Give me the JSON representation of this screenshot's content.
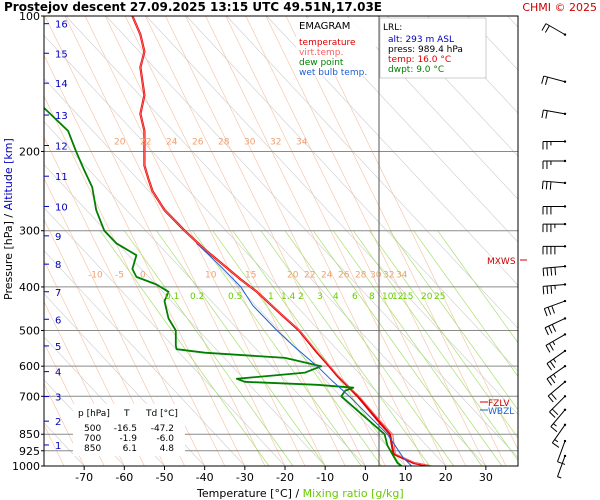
{
  "header": {
    "title": "Prostejov   descent   27.09.2025 13:15 UTC  49.51N,17.03E",
    "copyright": "CHMI © 2025"
  },
  "colors": {
    "temperature": "#e00000",
    "virt_temp": "#ff6060",
    "dew_point": "#008000",
    "wet_bulb": "#1f5fd0",
    "altitude": "#0000c0",
    "mixing_ratio": "#66cc00",
    "isotherm_label": "#f0a070",
    "grid": "#999999"
  },
  "legend": {
    "title": "EMAGRAM",
    "items": [
      {
        "label": "temperature",
        "color": "#e00000"
      },
      {
        "label": "virt.temp.",
        "color": "#ff6060"
      },
      {
        "label": "dew point",
        "color": "#008000"
      },
      {
        "label": "wet bulb temp.",
        "color": "#1f5fd0"
      }
    ]
  },
  "lrl": {
    "title": "LRL:",
    "alt": "alt: 293 m ASL",
    "press": "press: 989.4 hPa",
    "temp": "temp: 16.0 °C",
    "dwpt": "dwpt: 9.0 °C"
  },
  "table": {
    "headers": [
      "p [hPa]",
      "T",
      "Td [°C]"
    ],
    "rows": [
      [
        "500",
        "-16.5",
        "-47.2"
      ],
      [
        "700",
        "-1.9",
        "-6.0"
      ],
      [
        "850",
        "6.1",
        "4.8"
      ]
    ]
  },
  "levels": {
    "mxws": "MXWS",
    "fzlv": "FZLV",
    "wbzl": "WBZL"
  },
  "chart_data": {
    "type": "line",
    "xlabel": "Temperature [°C]",
    "xlabel2": "Mixing ratio [g/kg]",
    "ylabel": "Pressure [hPa]",
    "ylabel2": "Altitude [km]",
    "xlim": [
      -80,
      38
    ],
    "ylim": [
      1000,
      100
    ],
    "yscale": "log",
    "x_ticks": [
      -70,
      -60,
      -50,
      -40,
      -30,
      -20,
      -10,
      0,
      10,
      20,
      30
    ],
    "p_ticks": [
      100,
      200,
      300,
      400,
      500,
      600,
      700,
      850,
      925,
      1000
    ],
    "alt_ticks": [
      {
        "km": "1",
        "p": 898
      },
      {
        "km": "2",
        "p": 795
      },
      {
        "km": "3",
        "p": 701
      },
      {
        "km": "4",
        "p": 617
      },
      {
        "km": "5",
        "p": 541
      },
      {
        "km": "6",
        "p": 472
      },
      {
        "km": "7",
        "p": 410
      },
      {
        "km": "8",
        "p": 356
      },
      {
        "km": "9",
        "p": 308
      },
      {
        "km": "10",
        "p": 265
      },
      {
        "km": "11",
        "p": 227
      },
      {
        "km": "12",
        "p": 194
      },
      {
        "km": "13",
        "p": 166
      },
      {
        "km": "14",
        "p": 141
      },
      {
        "km": "15",
        "p": 121
      },
      {
        "km": "16",
        "p": 104
      }
    ],
    "isotherm_labels_upper": {
      "p": 195,
      "values": [
        "20",
        "22",
        "24",
        "26",
        "28",
        "30",
        "32",
        "34"
      ]
    },
    "isotherm_labels_lower": {
      "p": 385,
      "values": [
        "-10",
        "-5",
        "0",
        "10",
        "15",
        "20",
        "22",
        "24",
        "26",
        "28",
        "30",
        "32",
        "34"
      ]
    },
    "mixing_ratio_labels": {
      "p": 415,
      "values": [
        "0.1",
        "0.2",
        "0.5",
        "1",
        "1.4",
        "2",
        "3",
        "4",
        "6",
        "8",
        "10",
        "12",
        "15",
        "20",
        "25"
      ]
    },
    "series": [
      {
        "name": "temperature",
        "points": [
          [
            15.8,
            1000
          ],
          [
            12,
            985
          ],
          [
            7,
            940
          ],
          [
            6.1,
            850
          ],
          [
            3,
            790
          ],
          [
            -1.9,
            700
          ],
          [
            -4,
            670
          ],
          [
            -7,
            630
          ],
          [
            -9,
            600
          ],
          [
            -12,
            560
          ],
          [
            -16.5,
            500
          ],
          [
            -21,
            460
          ],
          [
            -27,
            410
          ],
          [
            -31,
            385
          ],
          [
            -40,
            330
          ],
          [
            -45,
            300
          ],
          [
            -50,
            270
          ],
          [
            -53,
            245
          ],
          [
            -54,
            230
          ],
          [
            -55,
            215
          ],
          [
            -55,
            200
          ],
          [
            -55,
            180
          ],
          [
            -56,
            165
          ],
          [
            -55,
            150
          ],
          [
            -56,
            130
          ],
          [
            -55,
            120
          ],
          [
            -56,
            110
          ],
          [
            -58,
            100
          ]
        ]
      },
      {
        "name": "virt.temp.",
        "points": [
          [
            16.5,
            1000
          ],
          [
            12.5,
            985
          ],
          [
            7.5,
            940
          ],
          [
            6.8,
            850
          ],
          [
            3.5,
            790
          ],
          [
            -1.5,
            700
          ],
          [
            -3.8,
            670
          ],
          [
            -6.8,
            630
          ],
          [
            -8.8,
            600
          ],
          [
            -11.8,
            560
          ],
          [
            -16.4,
            500
          ],
          [
            -20.9,
            460
          ],
          [
            -27,
            410
          ],
          [
            -31,
            385
          ],
          [
            -40,
            330
          ],
          [
            -45,
            300
          ],
          [
            -50,
            270
          ],
          [
            -53,
            245
          ],
          [
            -54,
            230
          ],
          [
            -55,
            215
          ],
          [
            -55,
            200
          ],
          [
            -55,
            180
          ],
          [
            -56,
            165
          ],
          [
            -55,
            150
          ],
          [
            -56,
            130
          ],
          [
            -55,
            120
          ],
          [
            -56,
            110
          ],
          [
            -58,
            100
          ]
        ]
      },
      {
        "name": "dew point",
        "points": [
          [
            9,
            1000
          ],
          [
            8,
            985
          ],
          [
            5.5,
            900
          ],
          [
            4.8,
            850
          ],
          [
            0,
            780
          ],
          [
            -6,
            700
          ],
          [
            -5,
            680
          ],
          [
            -3,
            670
          ],
          [
            -12,
            660
          ],
          [
            -30,
            650
          ],
          [
            -32,
            640
          ],
          [
            -15,
            620
          ],
          [
            -11,
            600
          ],
          [
            -20,
            575
          ],
          [
            -40,
            560
          ],
          [
            -47,
            550
          ],
          [
            -47.2,
            540
          ],
          [
            -47.2,
            500
          ],
          [
            -49,
            470
          ],
          [
            -50,
            430
          ],
          [
            -49,
            410
          ],
          [
            -52,
            395
          ],
          [
            -57,
            380
          ],
          [
            -58,
            365
          ],
          [
            -57,
            340
          ],
          [
            -62,
            320
          ],
          [
            -65,
            300
          ],
          [
            -67,
            270
          ],
          [
            -68,
            240
          ],
          [
            -70,
            220
          ],
          [
            -72,
            200
          ],
          [
            -74,
            180
          ],
          [
            -80,
            160
          ]
        ]
      },
      {
        "name": "wet bulb temp.",
        "points": [
          [
            11.5,
            1000
          ],
          [
            9.5,
            960
          ],
          [
            5.5,
            850
          ],
          [
            -4,
            700
          ],
          [
            -8,
            650
          ],
          [
            -12,
            600
          ],
          [
            -18,
            540
          ],
          [
            -22,
            500
          ],
          [
            -28,
            440
          ],
          [
            -31,
            400
          ],
          [
            -36,
            360
          ],
          [
            -42,
            320
          ]
        ]
      }
    ],
    "wind_barbs": [
      {
        "p": 110,
        "dir": 300,
        "speed": 20
      },
      {
        "p": 140,
        "dir": 285,
        "speed": 20
      },
      {
        "p": 165,
        "dir": 280,
        "speed": 20
      },
      {
        "p": 190,
        "dir": 270,
        "speed": 25
      },
      {
        "p": 210,
        "dir": 270,
        "speed": 25
      },
      {
        "p": 235,
        "dir": 275,
        "speed": 30
      },
      {
        "p": 265,
        "dir": 270,
        "speed": 30
      },
      {
        "p": 290,
        "dir": 270,
        "speed": 35
      },
      {
        "p": 325,
        "dir": 270,
        "speed": 40
      },
      {
        "p": 360,
        "dir": 265,
        "speed": 50
      },
      {
        "p": 395,
        "dir": 265,
        "speed": 35
      },
      {
        "p": 430,
        "dir": 250,
        "speed": 30
      },
      {
        "p": 470,
        "dir": 245,
        "speed": 30
      },
      {
        "p": 510,
        "dir": 240,
        "speed": 25
      },
      {
        "p": 555,
        "dir": 235,
        "speed": 25
      },
      {
        "p": 600,
        "dir": 235,
        "speed": 25
      },
      {
        "p": 650,
        "dir": 230,
        "speed": 20
      },
      {
        "p": 700,
        "dir": 225,
        "speed": 20
      },
      {
        "p": 750,
        "dir": 220,
        "speed": 15
      },
      {
        "p": 810,
        "dir": 215,
        "speed": 15
      },
      {
        "p": 880,
        "dir": 200,
        "speed": 10
      },
      {
        "p": 950,
        "dir": 200,
        "speed": 5
      }
    ]
  }
}
